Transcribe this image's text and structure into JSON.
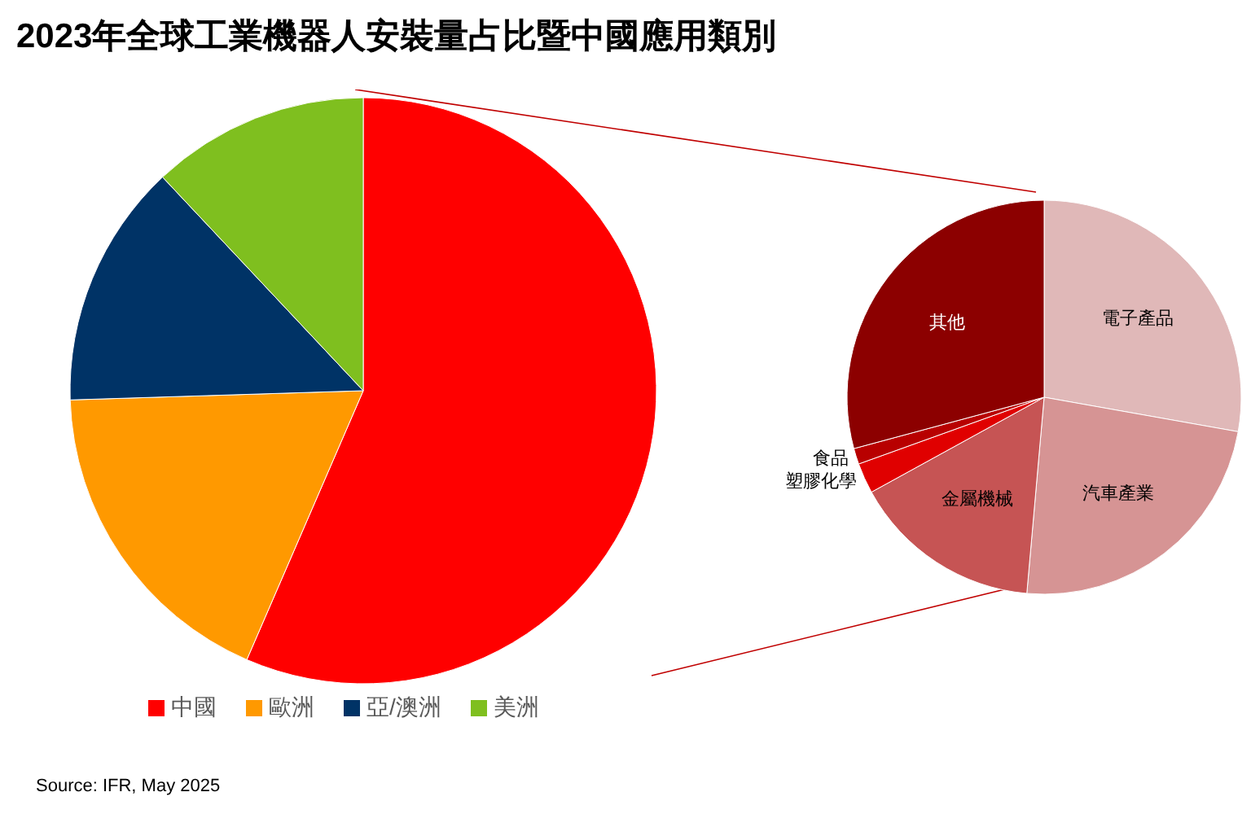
{
  "chart_data": [
    {
      "type": "pie",
      "title": "2023年全球工業機器人安裝量占比暨中國應用類別",
      "categories": [
        "中國",
        "歐洲",
        "亞/澳洲",
        "美洲"
      ],
      "values": [
        56.5,
        18,
        13.5,
        12
      ],
      "colors": [
        "#ff0000",
        "#ff9900",
        "#003366",
        "#7fbf1f"
      ],
      "legend": "bottom",
      "annotations": [
        "Source: IFR, May 2025"
      ]
    },
    {
      "type": "pie",
      "categories": [
        "電子產品",
        "汽車產業",
        "金屬機械",
        "塑膠化學",
        "食品",
        "其他"
      ],
      "values": [
        27.8,
        23.6,
        15.6,
        2.5,
        1.3,
        29.2
      ],
      "colors": [
        "#e0b8b8",
        "#d69494",
        "#c65454",
        "#e00000",
        "#b80000",
        "#8c0000"
      ],
      "data_labels": false,
      "legend": false
    }
  ]
}
